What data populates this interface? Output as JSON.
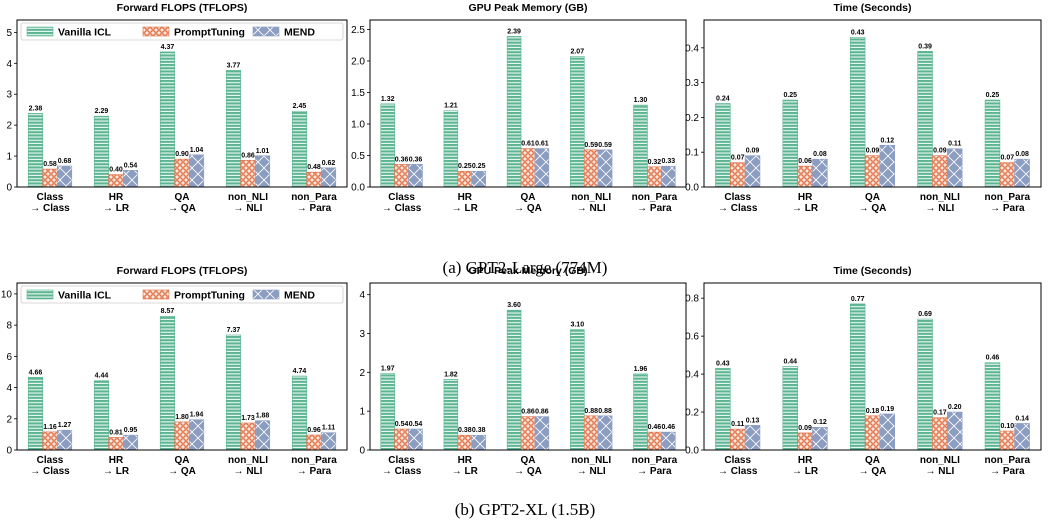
{
  "captions": [
    "(a) GPT2-Large (774M)",
    "(b) GPT2-XL (1.5B)"
  ],
  "legend": [
    "Vanilla ICL",
    "PromptTuning",
    "MEND"
  ],
  "colors": {
    "vanilla": "#5bb592",
    "prompt_fill": "#fbe7dc",
    "prompt_line": "#e06f45",
    "mend": "#8c9dc2",
    "mend_line": "#ffffff"
  },
  "chart_data": [
    {
      "type": "bar",
      "group": "GPT2-Large (774M)",
      "title": "Forward FLOPS (TFLOPS)",
      "categories": [
        "Class\n→ Class",
        "HR\n→ LR",
        "QA\n→ QA",
        "non_NLI\n→ NLI",
        "non_Para\n→ Para"
      ],
      "series": [
        {
          "name": "Vanilla ICL",
          "values": [
            2.38,
            2.29,
            4.37,
            3.77,
            2.45
          ]
        },
        {
          "name": "PromptTuning",
          "values": [
            0.58,
            0.4,
            0.9,
            0.86,
            0.48
          ]
        },
        {
          "name": "MEND",
          "values": [
            0.68,
            0.54,
            1.04,
            1.01,
            0.62
          ]
        }
      ],
      "ylim": [
        0,
        5.4
      ],
      "yticks": [
        0,
        1,
        2,
        3,
        4,
        5
      ],
      "ytick_labels": [
        "0",
        "1",
        "2",
        "3",
        "4",
        "5"
      ],
      "legend": "top"
    },
    {
      "type": "bar",
      "group": "GPT2-Large (774M)",
      "title": "GPU Peak Memory (GB)",
      "categories": [
        "Class\n→ Class",
        "HR\n→ LR",
        "QA\n→ QA",
        "non_NLI\n→ NLI",
        "non_Para\n→ Para"
      ],
      "series": [
        {
          "name": "Vanilla ICL",
          "values": [
            1.32,
            1.21,
            2.39,
            2.07,
            1.3
          ]
        },
        {
          "name": "PromptTuning",
          "values": [
            0.36,
            0.25,
            0.61,
            0.59,
            0.32
          ]
        },
        {
          "name": "MEND",
          "values": [
            0.36,
            0.25,
            0.61,
            0.59,
            0.33
          ]
        }
      ],
      "ylim": [
        0,
        2.65
      ],
      "yticks": [
        0,
        0.5,
        1,
        1.5,
        2,
        2.5
      ],
      "ytick_labels": [
        "0.0",
        "0.5",
        "1.0",
        "1.5",
        "2.0",
        "2.5"
      ]
    },
    {
      "type": "bar",
      "group": "GPT2-Large (774M)",
      "title": "Time (Seconds)",
      "categories": [
        "Class\n→ Class",
        "HR\n→ LR",
        "QA\n→ QA",
        "non_NLI\n→ NLI",
        "non_Para\n→ Para"
      ],
      "series": [
        {
          "name": "Vanilla ICL",
          "values": [
            0.24,
            0.25,
            0.43,
            0.39,
            0.25
          ]
        },
        {
          "name": "PromptTuning",
          "values": [
            0.07,
            0.06,
            0.09,
            0.09,
            0.07
          ]
        },
        {
          "name": "MEND",
          "values": [
            0.09,
            0.08,
            0.12,
            0.11,
            0.08
          ]
        }
      ],
      "ylim": [
        0,
        0.48
      ],
      "yticks": [
        0,
        0.1,
        0.2,
        0.3,
        0.4
      ],
      "ytick_labels": [
        "0.0",
        "0.1",
        "0.2",
        "0.3",
        "0.4"
      ]
    },
    {
      "type": "bar",
      "group": "GPT2-XL (1.5B)",
      "title": "Forward FLOPS (TFLOPS)",
      "categories": [
        "Class\n→ Class",
        "HR\n→ LR",
        "QA\n→ QA",
        "non_NLI\n→ NLI",
        "non_Para\n→ Para"
      ],
      "series": [
        {
          "name": "Vanilla ICL",
          "values": [
            4.66,
            4.44,
            8.57,
            7.37,
            4.74
          ]
        },
        {
          "name": "PromptTuning",
          "values": [
            1.16,
            0.81,
            1.8,
            1.73,
            0.96
          ]
        },
        {
          "name": "MEND",
          "values": [
            1.27,
            0.95,
            1.94,
            1.88,
            1.11
          ]
        }
      ],
      "ylim": [
        0,
        10.7
      ],
      "yticks": [
        0,
        2,
        4,
        6,
        8,
        10
      ],
      "ytick_labels": [
        "0",
        "2",
        "4",
        "6",
        "8",
        "10"
      ],
      "legend": "top"
    },
    {
      "type": "bar",
      "group": "GPT2-XL (1.5B)",
      "title": "GPU Peak Memory (GB)",
      "categories": [
        "Class\n→ Class",
        "HR\n→ LR",
        "QA\n→ QA",
        "non_NLI\n→ NLI",
        "non_Para\n→ Para"
      ],
      "series": [
        {
          "name": "Vanilla ICL",
          "values": [
            1.97,
            1.82,
            3.6,
            3.1,
            1.96
          ]
        },
        {
          "name": "PromptTuning",
          "values": [
            0.54,
            0.38,
            0.86,
            0.88,
            0.46
          ]
        },
        {
          "name": "MEND",
          "values": [
            0.54,
            0.38,
            0.86,
            0.88,
            0.46
          ]
        }
      ],
      "ylim": [
        0,
        4.3
      ],
      "yticks": [
        0,
        1,
        2,
        3,
        4
      ],
      "ytick_labels": [
        "0",
        "1",
        "2",
        "3",
        "4"
      ]
    },
    {
      "type": "bar",
      "group": "GPT2-XL (1.5B)",
      "title": "Time (Seconds)",
      "categories": [
        "Class\n→ Class",
        "HR\n→ LR",
        "QA\n→ QA",
        "non_NLI\n→ NLI",
        "non_Para\n→ Para"
      ],
      "series": [
        {
          "name": "Vanilla ICL",
          "values": [
            0.43,
            0.44,
            0.77,
            0.69,
            0.46
          ]
        },
        {
          "name": "PromptTuning",
          "values": [
            0.11,
            0.09,
            0.18,
            0.17,
            0.1
          ]
        },
        {
          "name": "MEND",
          "values": [
            0.13,
            0.12,
            0.19,
            0.2,
            0.14
          ]
        }
      ],
      "ylim": [
        0,
        0.88
      ],
      "yticks": [
        0,
        0.2,
        0.4,
        0.6,
        0.8
      ],
      "ytick_labels": [
        "0.0",
        "0.2",
        "0.4",
        "0.6",
        "0.8"
      ]
    }
  ]
}
